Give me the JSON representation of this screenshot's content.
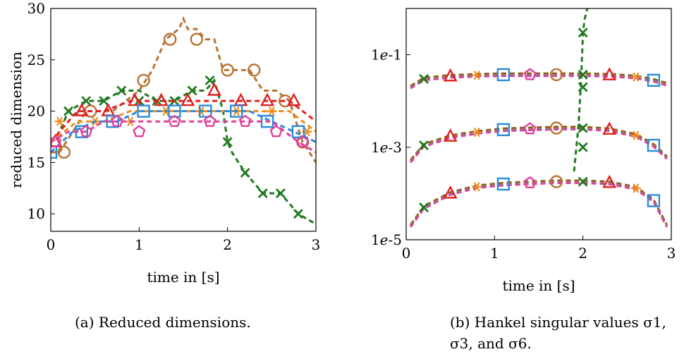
{
  "captions": {
    "a": "(a) Reduced dimensions.",
    "b": "(b) Hankel singular values σ1, σ3, and σ6."
  },
  "chart_data": [
    {
      "type": "line",
      "ylabel": "reduced dimension",
      "xlabel": "time in [s]",
      "xlim": [
        0,
        3
      ],
      "ylim": [
        8.3,
        30
      ],
      "xticks": [
        0,
        1,
        2,
        3
      ],
      "yticks": [
        10,
        15,
        20,
        25,
        30
      ],
      "tick_labels_x": [
        "0",
        "1",
        "2",
        "3"
      ],
      "tick_labels_y": [
        "10",
        "15",
        "20",
        "25",
        "30"
      ],
      "series": [
        {
          "color": "#b87333",
          "marker": "circle",
          "x": [
            0,
            0.1,
            0.25,
            0.4,
            0.55,
            0.7,
            0.85,
            1.0,
            1.15,
            1.3,
            1.45,
            1.5,
            1.55,
            1.65,
            1.75,
            1.85,
            1.95,
            2.0,
            2.1,
            2.25,
            2.4,
            2.55,
            2.7,
            2.85,
            3.0
          ],
          "y": [
            16,
            16,
            18,
            20,
            20,
            20,
            21,
            22,
            24,
            27,
            28,
            29,
            28,
            28,
            27,
            27,
            24,
            24,
            24,
            24,
            22,
            22,
            21,
            17,
            15
          ],
          "marker_x": [
            0.15,
            0.45,
            1.05,
            1.35,
            1.65,
            2.0,
            2.3,
            2.65,
            2.85
          ],
          "marker_y": [
            16,
            20,
            23,
            27,
            27,
            24,
            24,
            21,
            17
          ]
        },
        {
          "color": "#1f7a1f",
          "marker": "cross",
          "x": [
            0,
            0.1,
            0.2,
            0.4,
            0.6,
            0.8,
            1.0,
            1.2,
            1.4,
            1.6,
            1.75,
            1.85,
            1.95,
            2.0,
            2.05,
            2.2,
            2.4,
            2.6,
            2.8,
            3.0
          ],
          "y": [
            17,
            18,
            20,
            21,
            21,
            22,
            22,
            21,
            21,
            22,
            22,
            23,
            20,
            17,
            16,
            14,
            12,
            12,
            10,
            9
          ],
          "marker_x": [
            0.2,
            0.4,
            0.6,
            0.8,
            1.0,
            1.2,
            1.4,
            1.6,
            1.8,
            2.0,
            2.2,
            2.4,
            2.6,
            2.8
          ],
          "marker_y": [
            20,
            21,
            21,
            22,
            21,
            21,
            21,
            22,
            23,
            17,
            14,
            12,
            12,
            10
          ]
        },
        {
          "color": "#e02020",
          "marker": "triangle",
          "x": [
            0,
            0.3,
            0.6,
            0.9,
            1.2,
            1.5,
            1.8,
            2.1,
            2.4,
            2.7,
            3.0
          ],
          "y": [
            17,
            20,
            20,
            21,
            21,
            21,
            21,
            21,
            21,
            21,
            19
          ],
          "marker_x": [
            0.05,
            0.35,
            0.65,
            0.95,
            1.25,
            1.55,
            1.85,
            2.15,
            2.45,
            2.75
          ],
          "marker_y": [
            17,
            20,
            20,
            21,
            21,
            21,
            22,
            21,
            21,
            21
          ]
        },
        {
          "color": "#f08c1a",
          "marker": "star",
          "x": [
            0,
            0.3,
            0.6,
            0.9,
            1.2,
            1.5,
            1.8,
            2.1,
            2.4,
            2.7,
            3.0
          ],
          "y": [
            17,
            19,
            19,
            20,
            20,
            20,
            20,
            20,
            20,
            20,
            18
          ],
          "marker_x": [
            0.1,
            0.5,
            0.9,
            1.3,
            1.7,
            2.1,
            2.5,
            2.9
          ],
          "marker_y": [
            19,
            19,
            19,
            20,
            20,
            20,
            20,
            18
          ]
        },
        {
          "color": "#2a8cdc",
          "marker": "square",
          "x": [
            0,
            0.25,
            0.5,
            0.75,
            1.0,
            1.25,
            1.5,
            1.75,
            2.0,
            2.25,
            2.5,
            2.75,
            3.0
          ],
          "y": [
            16,
            18,
            19,
            19,
            20,
            20,
            20,
            20,
            20,
            20,
            19,
            18,
            17
          ],
          "marker_x": [
            0.0,
            0.35,
            0.7,
            1.05,
            1.4,
            1.75,
            2.1,
            2.45,
            2.8
          ],
          "marker_y": [
            16,
            18,
            19,
            20,
            20,
            20,
            20,
            19,
            18
          ]
        },
        {
          "color": "#e0409a",
          "marker": "pentagon",
          "x": [
            0,
            0.2,
            0.4,
            0.6,
            0.8,
            1.0,
            1.5,
            2.0,
            2.5,
            2.8,
            3.0
          ],
          "y": [
            17,
            18,
            18,
            19,
            19,
            19,
            19,
            19,
            19,
            17,
            16
          ],
          "marker_x": [
            0.05,
            0.4,
            0.75,
            1.0,
            1.4,
            1.8,
            2.2,
            2.55,
            2.85
          ],
          "marker_y": [
            17,
            18,
            19,
            18,
            19,
            19,
            19,
            18,
            17
          ]
        }
      ]
    },
    {
      "type": "line",
      "xlabel": "time in [s]",
      "yscale": "log",
      "xlim": [
        0,
        3
      ],
      "ylim": [
        1e-05,
        1
      ],
      "xticks": [
        0,
        1,
        2,
        3
      ],
      "tick_labels_x": [
        "0",
        "1",
        "2",
        "3"
      ],
      "yticks": [
        1e-05,
        0.001,
        0.1
      ],
      "tick_labels_y": [
        {
          "mant": "1",
          "exp": "e",
          "pow": "-5"
        },
        {
          "mant": "1",
          "exp": "e",
          "pow": "-3"
        },
        {
          "mant": "1",
          "exp": "e",
          "pow": "-1"
        }
      ],
      "bands": [
        {
          "name": "σ1",
          "x": [
            0.05,
            0.2,
            0.5,
            0.8,
            1.1,
            1.4,
            1.7,
            2.0,
            2.3,
            2.6,
            2.8,
            2.95
          ],
          "y": [
            0.02,
            0.03,
            0.034,
            0.036,
            0.037,
            0.037,
            0.037,
            0.037,
            0.036,
            0.033,
            0.028,
            0.023
          ]
        },
        {
          "name": "σ3",
          "x": [
            0.05,
            0.2,
            0.5,
            0.8,
            1.1,
            1.4,
            1.7,
            2.0,
            2.3,
            2.6,
            2.8,
            2.95
          ],
          "y": [
            0.0005,
            0.0011,
            0.0017,
            0.0021,
            0.0024,
            0.0025,
            0.0026,
            0.0026,
            0.0024,
            0.0018,
            0.0011,
            0.0006
          ]
        },
        {
          "name": "σ6",
          "x": [
            0.05,
            0.2,
            0.5,
            0.8,
            1.1,
            1.4,
            1.7,
            2.0,
            2.3,
            2.6,
            2.8,
            2.95
          ],
          "y": [
            2e-05,
            5e-05,
            0.0001,
            0.00014,
            0.00016,
            0.00017,
            0.00018,
            0.00018,
            0.00017,
            0.00013,
            7e-05,
            2e-05
          ]
        }
      ],
      "series_colors": [
        "#b87333",
        "#1f7a1f",
        "#e02020",
        "#f08c1a",
        "#2a8cdc",
        "#e0409a"
      ],
      "markers": [
        "circle",
        "cross",
        "triangle",
        "star",
        "square",
        "pentagon"
      ],
      "green_blowup": {
        "x": [
          1.9,
          1.95,
          1.98,
          2.0,
          2.02,
          2.05
        ],
        "y": [
          0.0003,
          0.003,
          0.03,
          0.3,
          0.6,
          1.0
        ]
      }
    }
  ]
}
